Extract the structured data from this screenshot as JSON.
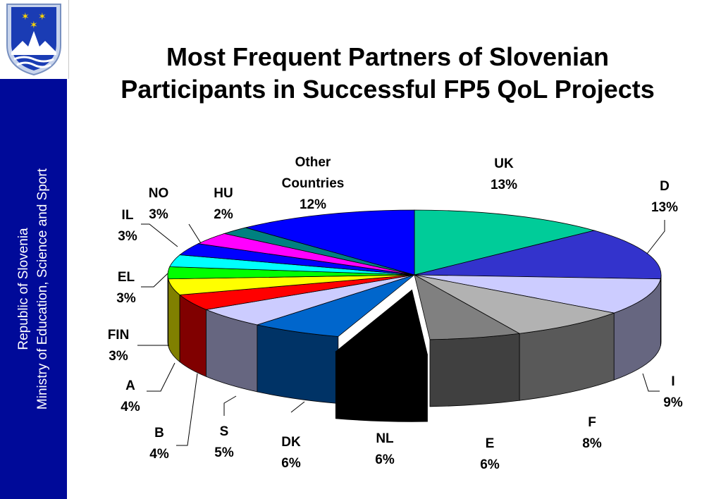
{
  "sidebar": {
    "line1": "Republic of Slovenia",
    "line2": "Ministry of Education, Science and Sport",
    "color": "#000a99"
  },
  "logo": {
    "icon": "slovenia-coat-of-arms-icon"
  },
  "chart_data": {
    "type": "pie",
    "style": "3d-exploded-front",
    "title": "Most Frequent Partners of Slovenian Participants in Successful FP5 QoL Projects",
    "slices": [
      {
        "label": "UK",
        "value": 13,
        "display": "13%",
        "color": "#00cc99"
      },
      {
        "label": "D",
        "value": 13,
        "display": "13%",
        "color": "#3333cc"
      },
      {
        "label": "I",
        "value": 9,
        "display": "9%",
        "color": "#ccccff"
      },
      {
        "label": "F",
        "value": 8,
        "display": "8%",
        "color": "#b2b2b2"
      },
      {
        "label": "E",
        "value": 6,
        "display": "6%",
        "color": "#808080"
      },
      {
        "label": "NL",
        "value": 6,
        "display": "6%",
        "color": "#000000"
      },
      {
        "label": "DK",
        "value": 6,
        "display": "6%",
        "color": "#0066cc"
      },
      {
        "label": "S",
        "value": 5,
        "display": "5%",
        "color": "#ccccff"
      },
      {
        "label": "B",
        "value": 4,
        "display": "4%",
        "color": "#ff0000"
      },
      {
        "label": "A",
        "value": 4,
        "display": "4%",
        "color": "#ffff00"
      },
      {
        "label": "FIN",
        "value": 3,
        "display": "3%",
        "color": "#00ff00"
      },
      {
        "label": "EL",
        "value": 3,
        "display": "3%",
        "color": "#00ffff"
      },
      {
        "label": "IL",
        "value": 3,
        "display": "3%",
        "color": "#0000ff"
      },
      {
        "label": "NO",
        "value": 3,
        "display": "3%",
        "color": "#ff00ff"
      },
      {
        "label": "HU",
        "value": 2,
        "display": "2%",
        "color": "#008080"
      },
      {
        "label": "Other Countries",
        "value": 12,
        "display": "12%",
        "color": "#0000ff"
      }
    ]
  }
}
